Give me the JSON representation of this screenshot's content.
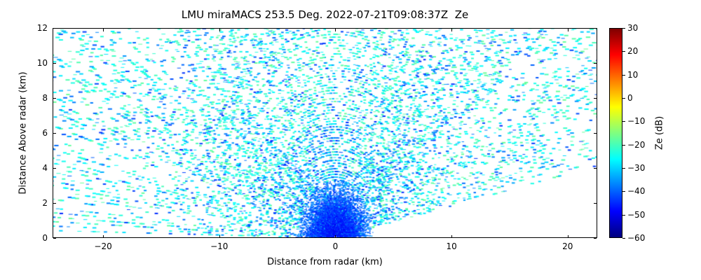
{
  "figure": {
    "background": "#ffffff",
    "axis_color": "#000000"
  },
  "chart_data": {
    "type": "scatter",
    "subtype": "radar_rhi_speckle",
    "title": "LMU miraMACS 253.5 Deg. 2022-07-21T09:08:37Z  Ze",
    "xlabel": "Distance from radar (km)",
    "ylabel": "Distance Above radar (km)",
    "xlim": [
      -24.35,
      22.55
    ],
    "ylim": [
      0,
      12
    ],
    "x_ticks": [
      -20,
      -10,
      0,
      10,
      20
    ],
    "y_ticks": [
      0,
      2,
      4,
      6,
      8,
      10,
      12
    ],
    "grid": false,
    "colorbar": {
      "label": "Ze (dB)",
      "min": -60,
      "max": 30,
      "ticks": [
        30,
        20,
        10,
        0,
        -10,
        -20,
        -30,
        -40,
        -50,
        -60
      ],
      "colormap": "jet",
      "stops": [
        {
          "pos": 0.0,
          "color": "#00007F"
        },
        {
          "pos": 0.125,
          "color": "#0000FF"
        },
        {
          "pos": 0.375,
          "color": "#00FFFF"
        },
        {
          "pos": 0.625,
          "color": "#FFFF00"
        },
        {
          "pos": 0.875,
          "color": "#FF0000"
        },
        {
          "pos": 1.0,
          "color": "#7F0000"
        }
      ]
    },
    "speckle": {
      "seed": 11,
      "elev_start_deg": 2.0,
      "elev_end_deg": 179.4,
      "elev_step_deg": 0.6,
      "wedge_min_elev_deg": 10.3,
      "range_min_km": 0.12,
      "range_max_km": 26.8,
      "gate_step_km": 0.16,
      "core_gate_step_km": 0.08,
      "core_radius_km": 3.3,
      "core_peak_prob": 0.95,
      "noise_prob": 0.26,
      "noise_ze_range": [
        -30,
        -17
      ],
      "blue_ze_range": [
        -45,
        -31
      ],
      "core_ze_base": -54,
      "notes": "RHI scan sector at azimuth 253.5 deg: sparse speckle noise (mostly ~-25 dB cyan, some ~-38 dB blue) across fan from ~10 deg elevation (right) through zenith to ~179 deg (left), max range ~27 km; dense dark-blue echo core (-55 to -40 dB) within ~3 km of radar near the ground; empty wedge below 10 deg on the right side."
    }
  }
}
